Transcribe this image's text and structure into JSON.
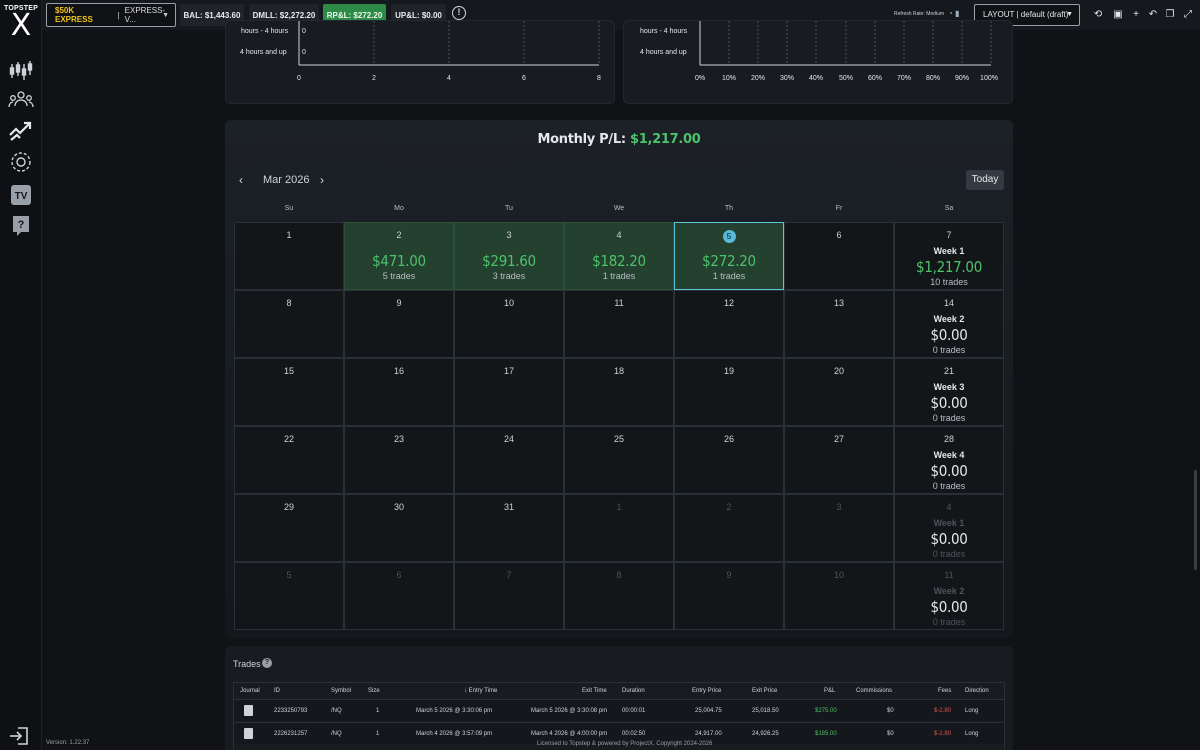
{
  "sidebar": {
    "brand": "TOPSTEP",
    "logo_letter": "X",
    "version": "Version: 1.22.37"
  },
  "topbar": {
    "account_name": "$50K EXPRESS",
    "account_type": "EXPRESS-V...",
    "bal": "BAL: $1,443.60",
    "dmll": "DMLL: $2,272.20",
    "rpl": "RP&L: $272.20",
    "upl": "UP&L: $0.00",
    "refresh_rate": "Refresh Rate: Medium",
    "layout": "LAYOUT | default (draft)"
  },
  "charts": {
    "left": {
      "y_labels": [
        "hours - 4 hours",
        "4 hours and up"
      ],
      "values": [
        "0",
        "0"
      ],
      "x_ticks": [
        "0",
        "2",
        "4",
        "6",
        "8"
      ]
    },
    "right": {
      "y_labels": [
        "hours - 4 hours",
        "4 hours and up"
      ],
      "x_ticks": [
        "0%",
        "10%",
        "20%",
        "30%",
        "40%",
        "50%",
        "60%",
        "70%",
        "80%",
        "90%",
        "100%"
      ]
    }
  },
  "calendar": {
    "monthly_label": "Monthly P/L:",
    "monthly_value": "$1,217.00",
    "month": "Mar 2026",
    "today_button": "Today",
    "days_of_week": [
      "Su",
      "Mo",
      "Tu",
      "We",
      "Th",
      "Fr",
      "Sa"
    ],
    "weeks": [
      [
        {
          "day": "1"
        },
        {
          "day": "2",
          "amount": "$471.00",
          "trades": "5 trades",
          "win": true
        },
        {
          "day": "3",
          "amount": "$291.60",
          "trades": "3 trades",
          "win": true
        },
        {
          "day": "4",
          "amount": "$182.20",
          "trades": "1 trades",
          "win": true
        },
        {
          "day": "5",
          "amount": "$272.20",
          "trades": "1 trades",
          "win": true,
          "today": true
        },
        {
          "day": "6"
        },
        {
          "day": "7",
          "week": "Week 1",
          "amount": "$1,217.00",
          "trades": "10 trades",
          "positive": true
        }
      ],
      [
        {
          "day": "8"
        },
        {
          "day": "9"
        },
        {
          "day": "10"
        },
        {
          "day": "11"
        },
        {
          "day": "12"
        },
        {
          "day": "13"
        },
        {
          "day": "14",
          "week": "Week 2",
          "amount": "$0.00",
          "trades": "0 trades"
        }
      ],
      [
        {
          "day": "15"
        },
        {
          "day": "16"
        },
        {
          "day": "17"
        },
        {
          "day": "18"
        },
        {
          "day": "19"
        },
        {
          "day": "20"
        },
        {
          "day": "21",
          "week": "Week 3",
          "amount": "$0.00",
          "trades": "0 trades"
        }
      ],
      [
        {
          "day": "22"
        },
        {
          "day": "23"
        },
        {
          "day": "24"
        },
        {
          "day": "25"
        },
        {
          "day": "26"
        },
        {
          "day": "27"
        },
        {
          "day": "28",
          "week": "Week 4",
          "amount": "$0.00",
          "trades": "0 trades"
        }
      ],
      [
        {
          "day": "29"
        },
        {
          "day": "30"
        },
        {
          "day": "31"
        },
        {
          "day": "1",
          "dim": true
        },
        {
          "day": "2",
          "dim": true
        },
        {
          "day": "3",
          "dim": true
        },
        {
          "day": "4",
          "week": "Week 1",
          "amount": "$0.00",
          "trades": "0 trades",
          "dim": true
        }
      ],
      [
        {
          "day": "5",
          "dim": true
        },
        {
          "day": "6",
          "dim": true
        },
        {
          "day": "7",
          "dim": true
        },
        {
          "day": "8",
          "dim": true
        },
        {
          "day": "9",
          "dim": true
        },
        {
          "day": "10",
          "dim": true
        },
        {
          "day": "11",
          "week": "Week 2",
          "amount": "$0.00",
          "trades": "0 trades",
          "dim": true
        }
      ]
    ]
  },
  "trades": {
    "title": "Trades",
    "columns": [
      "Journal",
      "ID",
      "Symbol",
      "Size",
      "Entry Time",
      "Exit Time",
      "Duration",
      "Entry Price",
      "Exit Price",
      "P&L",
      "Commissions",
      "Fees",
      "Direction"
    ],
    "rows": [
      {
        "id": "2233250793",
        "symbol": "/NQ",
        "size": "1",
        "entry_time": "March 5 2026 @ 3:30:06 pm",
        "exit_time": "March 5 2026 @ 3:30:08 pm",
        "duration": "00:00:01",
        "entry_price": "25,004.75",
        "exit_price": "25,018.50",
        "pnl": "$275.00",
        "commissions": "$0",
        "fees": "$-2.80",
        "direction": "Long"
      },
      {
        "id": "2226231257",
        "symbol": "/NQ",
        "size": "1",
        "entry_time": "March 4 2026 @ 3:57:09 pm",
        "exit_time": "March 4 2026 @ 4:00:00 pm",
        "duration": "00:02:50",
        "entry_price": "24,917.00",
        "exit_price": "24,926.25",
        "pnl": "$185.00",
        "commissions": "$0",
        "fees": "$-2.80",
        "direction": "Long"
      }
    ]
  },
  "footer": "Licensed to Topstep & powered by ProjectX. Copyright 2024-2026"
}
